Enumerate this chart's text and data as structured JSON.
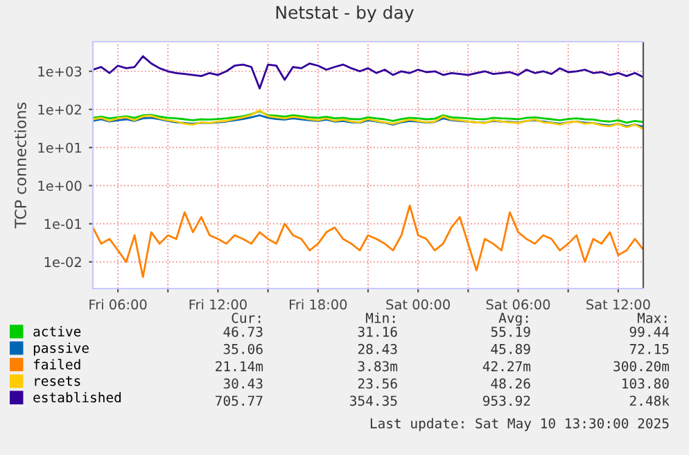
{
  "chart_data": {
    "type": "line",
    "title": "Netstat - by day",
    "ylabel": "TCP connections",
    "log": "y",
    "grid": true,
    "legend": "bottom left",
    "marker": "none",
    "line_style": "solid",
    "x": [
      "2025-05-09T04:30",
      "2025-05-09T05:00",
      "2025-05-09T05:30",
      "2025-05-09T06:00",
      "2025-05-09T06:30",
      "2025-05-09T07:00",
      "2025-05-09T07:30",
      "2025-05-09T08:00",
      "2025-05-09T08:30",
      "2025-05-09T09:00",
      "2025-05-09T09:30",
      "2025-05-09T10:00",
      "2025-05-09T10:30",
      "2025-05-09T11:00",
      "2025-05-09T11:30",
      "2025-05-09T12:00",
      "2025-05-09T12:30",
      "2025-05-09T13:00",
      "2025-05-09T13:30",
      "2025-05-09T14:00",
      "2025-05-09T14:30",
      "2025-05-09T15:00",
      "2025-05-09T15:30",
      "2025-05-09T16:00",
      "2025-05-09T16:30",
      "2025-05-09T17:00",
      "2025-05-09T17:30",
      "2025-05-09T18:00",
      "2025-05-09T18:30",
      "2025-05-09T19:00",
      "2025-05-09T19:30",
      "2025-05-09T20:00",
      "2025-05-09T20:30",
      "2025-05-09T21:00",
      "2025-05-09T21:30",
      "2025-05-09T22:00",
      "2025-05-09T22:30",
      "2025-05-09T23:00",
      "2025-05-09T23:30",
      "2025-05-10T00:00",
      "2025-05-10T00:30",
      "2025-05-10T01:00",
      "2025-05-10T01:30",
      "2025-05-10T02:00",
      "2025-05-10T02:30",
      "2025-05-10T03:00",
      "2025-05-10T03:30",
      "2025-05-10T04:00",
      "2025-05-10T04:30",
      "2025-05-10T05:00",
      "2025-05-10T05:30",
      "2025-05-10T06:00",
      "2025-05-10T06:30",
      "2025-05-10T07:00",
      "2025-05-10T07:30",
      "2025-05-10T08:00",
      "2025-05-10T08:30",
      "2025-05-10T09:00",
      "2025-05-10T09:30",
      "2025-05-10T10:00",
      "2025-05-10T10:30",
      "2025-05-10T11:00",
      "2025-05-10T11:30",
      "2025-05-10T12:00",
      "2025-05-10T12:30",
      "2025-05-10T13:00",
      "2025-05-10T13:30"
    ],
    "xlim": [
      "2025-05-09T04:30",
      "2025-05-10T13:30"
    ],
    "xticks": [
      {
        "value": "2025-05-09T06:00",
        "label": "Fri 06:00"
      },
      {
        "value": "2025-05-09T09:00",
        "label": null
      },
      {
        "value": "2025-05-09T12:00",
        "label": "Fri 12:00"
      },
      {
        "value": "2025-05-09T15:00",
        "label": null
      },
      {
        "value": "2025-05-09T18:00",
        "label": "Fri 18:00"
      },
      {
        "value": "2025-05-09T21:00",
        "label": null
      },
      {
        "value": "2025-05-10T00:00",
        "label": "Sat 00:00"
      },
      {
        "value": "2025-05-10T03:00",
        "label": null
      },
      {
        "value": "2025-05-10T06:00",
        "label": "Sat 06:00"
      },
      {
        "value": "2025-05-10T09:00",
        "label": null
      },
      {
        "value": "2025-05-10T12:00",
        "label": "Sat 12:00"
      }
    ],
    "ylim": [
      0.002,
      6000
    ],
    "yticks": [
      {
        "value": 0.01,
        "label": "1e-02"
      },
      {
        "value": 0.1,
        "label": "1e-01"
      },
      {
        "value": 1,
        "label": "1e+00"
      },
      {
        "value": 10,
        "label": "1e+01"
      },
      {
        "value": 100,
        "label": "1e+02"
      },
      {
        "value": 1000,
        "label": "1e+03"
      }
    ],
    "series": [
      {
        "name": "active",
        "color": "#00cc00",
        "values": [
          60,
          65,
          58,
          62,
          66,
          60,
          70,
          72,
          65,
          60,
          58,
          55,
          52,
          55,
          54,
          56,
          58,
          62,
          66,
          75,
          90,
          70,
          68,
          65,
          70,
          66,
          62,
          60,
          64,
          58,
          60,
          56,
          55,
          62,
          58,
          55,
          50,
          56,
          60,
          58,
          55,
          57,
          70,
          62,
          60,
          58,
          56,
          55,
          60,
          58,
          57,
          55,
          60,
          62,
          58,
          55,
          52,
          56,
          58,
          55,
          54,
          50,
          48,
          52,
          45,
          50,
          46.73
        ]
      },
      {
        "name": "passive",
        "color": "#0066b3",
        "values": [
          50,
          55,
          48,
          52,
          55,
          50,
          58,
          60,
          55,
          50,
          46,
          44,
          42,
          45,
          44,
          46,
          48,
          52,
          56,
          62,
          70,
          60,
          56,
          54,
          58,
          55,
          52,
          50,
          54,
          48,
          50,
          46,
          45,
          52,
          48,
          45,
          40,
          46,
          50,
          48,
          45,
          47,
          58,
          52,
          50,
          48,
          46,
          45,
          50,
          48,
          47,
          45,
          50,
          52,
          48,
          45,
          42,
          46,
          48,
          45,
          44,
          40,
          38,
          42,
          36,
          40,
          35.06
        ]
      },
      {
        "name": "failed",
        "color": "#ff8000",
        "values": [
          0.08,
          0.03,
          0.04,
          0.02,
          0.01,
          0.05,
          0.004,
          0.06,
          0.03,
          0.05,
          0.04,
          0.2,
          0.06,
          0.15,
          0.05,
          0.04,
          0.03,
          0.05,
          0.04,
          0.03,
          0.06,
          0.04,
          0.03,
          0.1,
          0.05,
          0.04,
          0.02,
          0.03,
          0.06,
          0.08,
          0.04,
          0.03,
          0.02,
          0.05,
          0.04,
          0.03,
          0.02,
          0.05,
          0.3,
          0.05,
          0.04,
          0.02,
          0.03,
          0.08,
          0.15,
          0.03,
          0.006,
          0.04,
          0.03,
          0.02,
          0.2,
          0.06,
          0.04,
          0.03,
          0.05,
          0.04,
          0.02,
          0.03,
          0.05,
          0.01,
          0.04,
          0.03,
          0.06,
          0.015,
          0.02,
          0.04,
          0.021
        ]
      },
      {
        "name": "resets",
        "color": "#ffcc00",
        "values": [
          55,
          60,
          50,
          58,
          62,
          52,
          66,
          68,
          58,
          52,
          48,
          42,
          40,
          46,
          44,
          48,
          50,
          56,
          62,
          72,
          95,
          66,
          62,
          58,
          64,
          60,
          55,
          52,
          58,
          50,
          54,
          48,
          46,
          56,
          50,
          46,
          42,
          48,
          54,
          50,
          46,
          48,
          66,
          54,
          52,
          48,
          46,
          44,
          52,
          48,
          46,
          44,
          50,
          54,
          46,
          44,
          40,
          46,
          48,
          42,
          44,
          38,
          36,
          42,
          34,
          40,
          30.43
        ]
      },
      {
        "name": "established",
        "color": "#330099",
        "values": [
          1100,
          1300,
          900,
          1400,
          1200,
          1300,
          2480,
          1600,
          1200,
          1000,
          900,
          850,
          800,
          750,
          900,
          800,
          1000,
          1400,
          1500,
          1300,
          354,
          1500,
          1400,
          600,
          1300,
          1200,
          1600,
          1400,
          1100,
          1300,
          1500,
          1200,
          1000,
          1200,
          900,
          1100,
          800,
          1000,
          900,
          1100,
          950,
          1000,
          800,
          900,
          850,
          800,
          900,
          1000,
          850,
          900,
          950,
          800,
          1100,
          900,
          1000,
          850,
          1200,
          950,
          1000,
          1100,
          900,
          950,
          800,
          900,
          750,
          900,
          705.77
        ]
      }
    ],
    "annotations": [
      "Cur:",
      "Min:",
      "Avg:",
      "Max:",
      "46.73",
      "31.16",
      "55.19",
      "99.44",
      "35.06",
      "28.43",
      "45.89",
      "72.15",
      "21.14m",
      "3.83m",
      "42.27m",
      "300.20m",
      "30.43",
      "23.56",
      "48.26",
      "103.80",
      "705.77",
      "354.35",
      "953.92",
      "2.48k",
      "Last update: Sat May 10 13:30:00 2025"
    ]
  }
}
